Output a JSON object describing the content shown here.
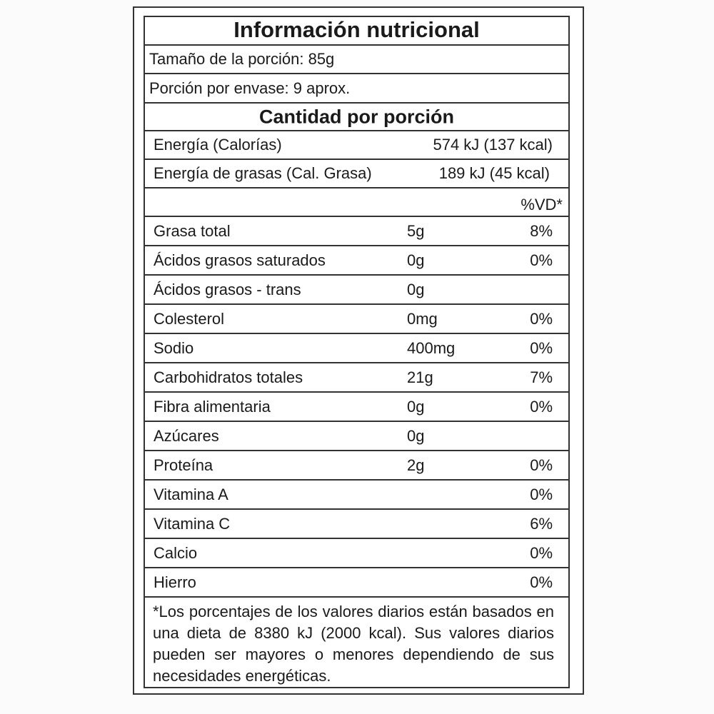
{
  "title": "Información nutricional",
  "serving_size": "Tamaño de la porción: 85g",
  "servings_per_container": "Porción por envase: 9 aprox.",
  "amount_header": "Cantidad por porción",
  "energy": {
    "label": "Energía (Calorías)",
    "value": "574 kJ (137 kcal)"
  },
  "fat_energy": {
    "label": "Energía de grasas (Cal. Grasa)",
    "value": "189 kJ (45 kcal)"
  },
  "dv_header": "%VD*",
  "nutrients": [
    {
      "label": "Grasa total",
      "amount": "5g",
      "dv": "8%"
    },
    {
      "label": "Ácidos grasos saturados",
      "amount": "0g",
      "dv": "0%"
    },
    {
      "label": "Ácidos grasos - trans",
      "amount": "0g",
      "dv": ""
    },
    {
      "label": "Colesterol",
      "amount": "0mg",
      "dv": "0%"
    },
    {
      "label": "Sodio",
      "amount": "400mg",
      "dv": "0%"
    },
    {
      "label": "Carbohidratos totales",
      "amount": "21g",
      "dv": "7%"
    },
    {
      "label": "Fibra alimentaria",
      "amount": "0g",
      "dv": "0%"
    },
    {
      "label": "Azúcares",
      "amount": "0g",
      "dv": ""
    },
    {
      "label": "Proteína",
      "amount": "2g",
      "dv": "0%"
    },
    {
      "label": "Vitamina A",
      "amount": "",
      "dv": "0%"
    },
    {
      "label": "Vitamina C",
      "amount": "",
      "dv": "6%"
    },
    {
      "label": "Calcio",
      "amount": "",
      "dv": "0%"
    },
    {
      "label": "Hierro",
      "amount": "",
      "dv": "0%"
    }
  ],
  "footnote": "*Los porcentajes de los valores diarios están basados en una dieta de 8380 kJ (2000 kcal). Sus valores diarios pueden ser mayores o menores dependiendo de sus necesidades energéticas."
}
